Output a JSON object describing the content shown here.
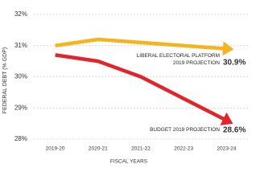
{
  "chart_data": {
    "type": "line",
    "y_label": "FEDERAL DEBT (% GDP)",
    "x_label": "FISCAL YEARS",
    "categories": [
      "2019-20",
      "2020-21",
      "2021-22",
      "2022-23",
      "2023-24"
    ],
    "series": [
      {
        "name": "LIBERAL ELECTORAL PLATFORM 2019 PROJECTION",
        "color": "#f5b41f",
        "values": [
          31.0,
          31.2,
          31.1,
          31.0,
          30.9
        ],
        "value_labels": [
          null,
          null,
          null,
          null,
          "30.9%"
        ]
      },
      {
        "name": "BUDGET 2019 PROJECTION",
        "color": "#e1252b",
        "values": [
          30.7,
          30.5,
          30.0,
          29.3,
          28.6
        ],
        "value_labels": [
          null,
          null,
          null,
          null,
          "28.6%"
        ]
      }
    ],
    "ylim": [
      28,
      32
    ],
    "yticks": [
      {
        "value": 28,
        "label": "28%"
      },
      {
        "value": 29,
        "label": "29%"
      },
      {
        "value": 30,
        "label": "30%"
      },
      {
        "value": 31,
        "label": "31%"
      },
      {
        "value": 32,
        "label": "32%"
      }
    ],
    "grid": true
  }
}
